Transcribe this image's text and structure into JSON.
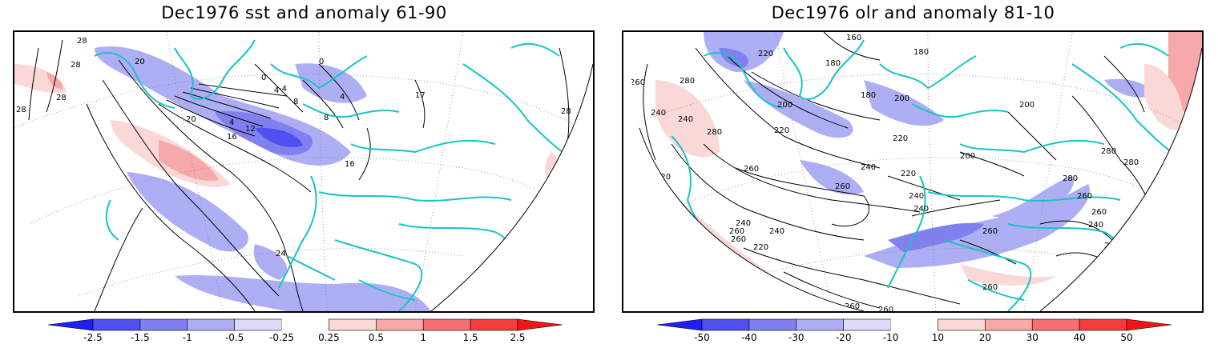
{
  "panels": [
    {
      "title": "Dec1976 sst and anomaly 61-90",
      "contour_labels": [
        "28",
        "28",
        "28",
        "28",
        "20",
        "20",
        "16",
        "12",
        "4",
        "4",
        "0",
        "0",
        "-4",
        "4",
        "8",
        "8",
        "17",
        "16",
        "24",
        "28"
      ],
      "colorbar": {
        "labels": [
          "-2.5",
          "-1.5",
          "-1",
          "-0.5",
          "-0.25",
          "0.25",
          "0.5",
          "1",
          "1.5",
          "2.5"
        ],
        "colors": [
          "#1f1ff5",
          "#5050f0",
          "#8080ee",
          "#aeaef4",
          "#dcdcfa",
          "#ffffff",
          "#fad8d8",
          "#f7a8a8",
          "#f57070",
          "#f53c3c",
          "#f51414"
        ]
      }
    },
    {
      "title": "Dec1976 olr and anomaly 81-10",
      "contour_labels": [
        "160",
        "220",
        "180",
        "180",
        "180",
        "200",
        "200",
        "240",
        "260",
        "280",
        "240",
        "280",
        "200",
        "220",
        "220",
        "200",
        "220",
        "240",
        "260",
        "240",
        "260",
        "240",
        "240",
        "260",
        "220",
        "240",
        "220",
        "260",
        "260",
        "260",
        "280",
        "280",
        "280",
        "260",
        "260",
        "240",
        "220",
        "260",
        "260"
      ],
      "colorbar": {
        "labels": [
          "-50",
          "-40",
          "-30",
          "-20",
          "-10",
          "10",
          "20",
          "30",
          "40",
          "50"
        ],
        "colors": [
          "#1f1ff5",
          "#5050f0",
          "#8080ee",
          "#aeaef4",
          "#dcdcfa",
          "#ffffff",
          "#fad8d8",
          "#f7a8a8",
          "#f57070",
          "#f53c3c",
          "#f51414"
        ]
      }
    }
  ],
  "colors": {
    "coast": "#18c4c4",
    "contour": "#000000",
    "grid": "#808080"
  }
}
